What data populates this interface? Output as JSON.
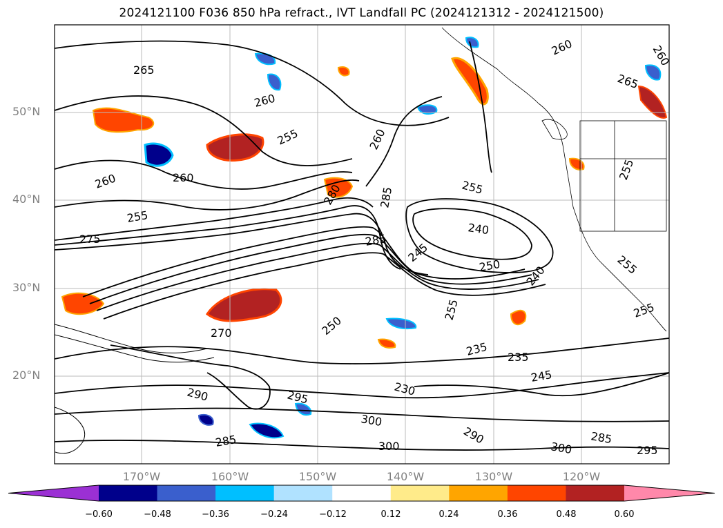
{
  "title": "2024121100 F036 850 hPa refract., IVT Landfall PC (2024121312 - 2024121500)",
  "lat_labels": [
    "50°N",
    "40°N",
    "30°N",
    "20°N"
  ],
  "lon_labels": [
    "170°W",
    "160°W",
    "150°W",
    "140°W",
    "130°W",
    "120°W"
  ],
  "colorbar": {
    "ticks": [
      "−0.60",
      "−0.48",
      "−0.36",
      "−0.24",
      "−0.12",
      "0.12",
      "0.24",
      "0.36",
      "0.48",
      "0.60"
    ],
    "colors": [
      "#9b30d4",
      "#00008b",
      "#3a5fcd",
      "#00bfff",
      "#b0e2ff",
      "#ffffff",
      "#ffeb8a",
      "#ffa500",
      "#ff4500",
      "#b22222",
      "#ff88aa"
    ]
  },
  "contour_labels": [
    "265",
    "260",
    "255",
    "260",
    "260",
    "255",
    "275",
    "260",
    "255",
    "240",
    "250",
    "245",
    "240",
    "285",
    "280",
    "285",
    "270",
    "250",
    "255",
    "235",
    "235",
    "245",
    "230",
    "295",
    "290",
    "285",
    "300",
    "300",
    "290",
    "285",
    "300",
    "295",
    "260",
    "265",
    "260",
    "255",
    "255",
    "255"
  ]
}
